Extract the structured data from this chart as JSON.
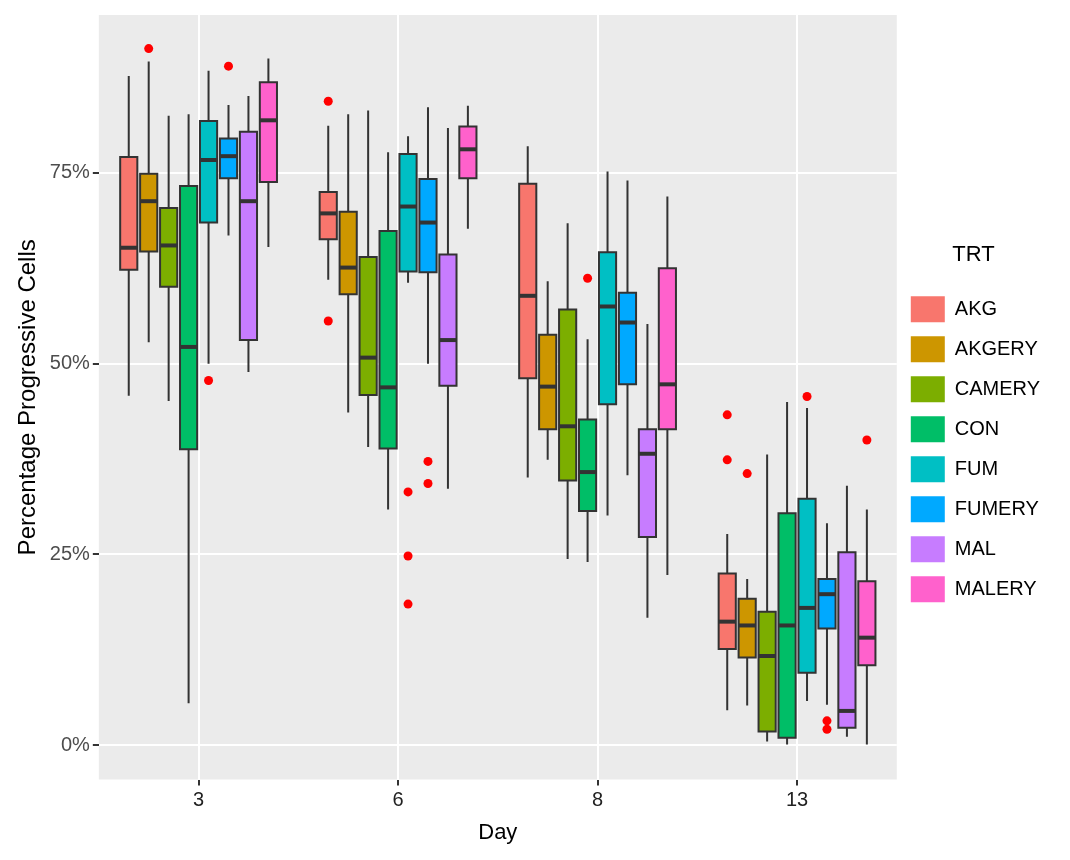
{
  "chart_data": {
    "type": "box",
    "xlabel": "Day",
    "ylabel": "Percentage Progressive Cells",
    "legend_title": "TRT",
    "legend": "right",
    "grid": true,
    "categories": [
      "3",
      "6",
      "8",
      "13"
    ],
    "ylim": [
      -4.5,
      95.7
    ],
    "yticks": [
      {
        "value": 0,
        "label": "0%"
      },
      {
        "value": 25,
        "label": "25%"
      },
      {
        "value": 50,
        "label": "50%"
      },
      {
        "value": 75,
        "label": "75%"
      }
    ],
    "series": [
      {
        "name": "AKG",
        "color": "#f8766d",
        "boxes": [
          {
            "low": 45.8,
            "q1": 62.3,
            "median": 65.2,
            "q3": 77.1,
            "high": 87.7
          },
          {
            "low": 61.0,
            "q1": 66.3,
            "median": 69.7,
            "q3": 72.5,
            "high": 81.2,
            "outliers": [
              84.4,
              55.6
            ]
          },
          {
            "low": 35.1,
            "q1": 48.1,
            "median": 58.9,
            "q3": 73.6,
            "high": 78.5
          },
          {
            "low": 4.6,
            "q1": 12.6,
            "median": 16.2,
            "q3": 22.5,
            "high": 27.7,
            "outliers": [
              43.3,
              37.4
            ]
          }
        ]
      },
      {
        "name": "AKGERY",
        "color": "#cd9600",
        "boxes": [
          {
            "low": 52.8,
            "q1": 64.7,
            "median": 71.3,
            "q3": 74.9,
            "high": 89.6,
            "outliers": [
              91.3
            ]
          },
          {
            "low": 43.6,
            "q1": 59.1,
            "median": 62.6,
            "q3": 69.9,
            "high": 82.7
          },
          {
            "low": 37.4,
            "q1": 41.4,
            "median": 47.0,
            "q3": 53.8,
            "high": 60.8
          },
          {
            "low": 5.2,
            "q1": 11.5,
            "median": 15.7,
            "q3": 19.2,
            "high": 21.8,
            "outliers": [
              35.6
            ]
          }
        ]
      },
      {
        "name": "CAMERY",
        "color": "#7cae00",
        "boxes": [
          {
            "low": 45.1,
            "q1": 60.1,
            "median": 65.5,
            "q3": 70.4,
            "high": 82.5
          },
          {
            "low": 39.1,
            "q1": 45.9,
            "median": 50.8,
            "q3": 64.0,
            "high": 83.2
          },
          {
            "low": 24.4,
            "q1": 34.7,
            "median": 41.8,
            "q3": 57.1,
            "high": 68.4
          },
          {
            "low": 0.5,
            "q1": 1.8,
            "median": 11.7,
            "q3": 17.5,
            "high": 38.1
          }
        ]
      },
      {
        "name": "CON",
        "color": "#00be67",
        "boxes": [
          {
            "low": 5.5,
            "q1": 38.8,
            "median": 52.2,
            "q3": 73.3,
            "high": 82.7
          },
          {
            "low": 30.9,
            "q1": 38.9,
            "median": 46.9,
            "q3": 67.4,
            "high": 77.7
          },
          {
            "low": 24.0,
            "q1": 30.7,
            "median": 35.8,
            "q3": 42.7,
            "high": 53.2,
            "outliers": [
              61.2
            ]
          },
          {
            "low": 0.1,
            "q1": 1.0,
            "median": 15.7,
            "q3": 30.4,
            "high": 45.0
          }
        ]
      },
      {
        "name": "FUM",
        "color": "#00bfc4",
        "boxes": [
          {
            "low": 50.0,
            "q1": 68.5,
            "median": 76.7,
            "q3": 81.8,
            "high": 88.4,
            "outliers": [
              47.8
            ]
          },
          {
            "low": 60.6,
            "q1": 62.1,
            "median": 70.6,
            "q3": 77.5,
            "high": 79.8,
            "outliers": [
              33.2,
              24.8,
              18.5
            ]
          },
          {
            "low": 30.1,
            "q1": 44.7,
            "median": 57.5,
            "q3": 64.6,
            "high": 75.2
          },
          {
            "low": 5.8,
            "q1": 9.5,
            "median": 18.0,
            "q3": 32.3,
            "high": 44.2,
            "outliers": [
              45.7
            ]
          }
        ]
      },
      {
        "name": "FUMERY",
        "color": "#00a9ff",
        "boxes": [
          {
            "low": 66.8,
            "q1": 74.3,
            "median": 77.2,
            "q3": 79.5,
            "high": 83.9,
            "outliers": [
              89.0
            ]
          },
          {
            "low": 50.0,
            "q1": 62.0,
            "median": 68.5,
            "q3": 74.2,
            "high": 83.6,
            "outliers": [
              37.2,
              34.3
            ]
          },
          {
            "low": 35.4,
            "q1": 47.3,
            "median": 55.4,
            "q3": 59.3,
            "high": 74.0
          },
          {
            "low": 5.3,
            "q1": 15.3,
            "median": 19.8,
            "q3": 21.8,
            "high": 29.1,
            "outliers": [
              3.2,
              2.1
            ]
          }
        ]
      },
      {
        "name": "MAL",
        "color": "#c77cff",
        "boxes": [
          {
            "low": 48.9,
            "q1": 53.1,
            "median": 71.3,
            "q3": 80.4,
            "high": 85.1
          },
          {
            "low": 33.6,
            "q1": 47.1,
            "median": 53.1,
            "q3": 64.3,
            "high": 80.9
          },
          {
            "low": 16.7,
            "q1": 27.3,
            "median": 38.2,
            "q3": 41.4,
            "high": 55.2
          },
          {
            "low": 1.1,
            "q1": 2.3,
            "median": 4.5,
            "q3": 25.3,
            "high": 34.0
          }
        ]
      },
      {
        "name": "MALERY",
        "color": "#ff61cc",
        "boxes": [
          {
            "low": 65.3,
            "q1": 73.8,
            "median": 81.9,
            "q3": 86.9,
            "high": 90.0
          },
          {
            "low": 67.7,
            "q1": 74.3,
            "median": 78.1,
            "q3": 81.1,
            "high": 83.8
          },
          {
            "low": 22.3,
            "q1": 41.4,
            "median": 47.3,
            "q3": 62.5,
            "high": 71.9
          },
          {
            "low": 0.1,
            "q1": 10.5,
            "median": 14.1,
            "q3": 21.5,
            "high": 30.9,
            "outliers": [
              40.0
            ]
          }
        ]
      }
    ]
  }
}
